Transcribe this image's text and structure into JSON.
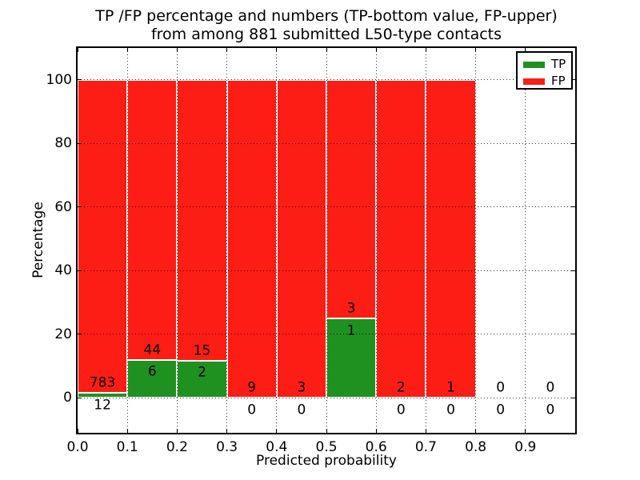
{
  "title": {
    "line1": "TP /FP percentage and numbers (TP-bottom value, FP-upper)",
    "line2": "from among 881 submitted L50-type contacts"
  },
  "axes": {
    "xlabel": "Predicted probability",
    "ylabel": "Percentage"
  },
  "colors": {
    "tp": "#1f9121",
    "fp": "#fc1d15",
    "bar_edge": "#ffffff",
    "grid": "#000000",
    "frame": "#000000",
    "background": "#ffffff",
    "text": "#000000"
  },
  "chart_data": {
    "type": "bar",
    "stacked": true,
    "title": "TP /FP percentage and numbers (TP-bottom value, FP-upper) from among 881 submitted L50-type contacts",
    "xlabel": "Predicted probability",
    "ylabel": "Percentage",
    "total_contacts": 881,
    "bin_starts": [
      0.0,
      0.1,
      0.2,
      0.3,
      0.4,
      0.5,
      0.6,
      0.7,
      0.8,
      0.9
    ],
    "bin_width": 0.1,
    "series": [
      {
        "name": "TP",
        "color": "#1f9121",
        "counts": [
          12,
          6,
          2,
          0,
          0,
          1,
          0,
          0,
          0,
          0
        ],
        "percent": [
          1.509,
          12.0,
          11.765,
          0,
          0,
          25.0,
          0,
          0,
          0,
          0
        ]
      },
      {
        "name": "FP",
        "color": "#fc1d15",
        "counts": [
          783,
          44,
          15,
          9,
          3,
          3,
          2,
          1,
          0,
          0
        ],
        "percent": [
          98.491,
          88.0,
          88.235,
          100,
          100,
          75.0,
          100,
          100,
          0,
          0
        ]
      }
    ],
    "stack_total_percent": [
      100,
      100,
      100,
      100,
      100,
      100,
      100,
      100,
      0,
      0
    ],
    "xticks": [
      "0.0",
      "0.1",
      "0.2",
      "0.3",
      "0.4",
      "0.5",
      "0.6",
      "0.7",
      "0.8",
      "0.9"
    ],
    "yticks": [
      "0",
      "20",
      "40",
      "60",
      "80",
      "100"
    ],
    "xlim": [
      0,
      1.0
    ],
    "ylim": [
      -11,
      110
    ],
    "grid": "dotted",
    "legend_position": "upper right",
    "annotation_rule": "FP count drawn 3 percentage points above green top, TP count drawn 4 percentage points below green top"
  }
}
